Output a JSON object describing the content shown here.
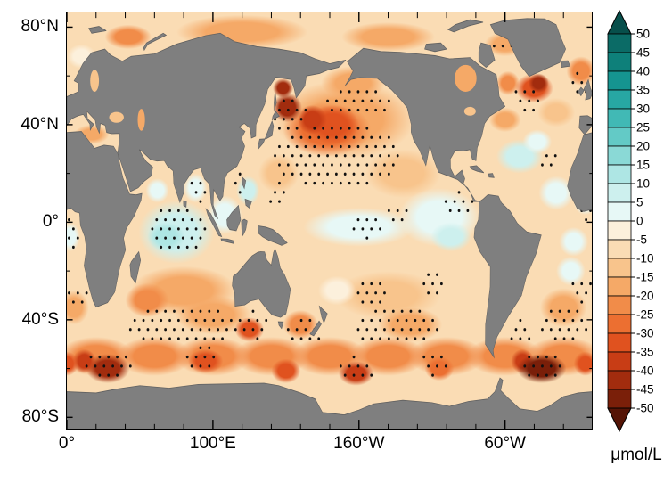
{
  "chart_data": {
    "type": "heatmap",
    "x_axis": {
      "range": [
        0,
        360
      ],
      "minor_tick_interval_deg": 20,
      "ticks": [
        {
          "lon": 0,
          "label": "0°"
        },
        {
          "lon": 100,
          "label": "100°E"
        },
        {
          "lon": 200,
          "label": "160°W"
        },
        {
          "lon": 300,
          "label": "60°W"
        }
      ]
    },
    "y_axis": {
      "range": [
        86,
        -85
      ],
      "minor_tick_interval_deg": 20,
      "ticks": [
        {
          "lat": 80,
          "label": "80°N"
        },
        {
          "lat": 40,
          "label": "40°N"
        },
        {
          "lat": 0,
          "label": "0°"
        },
        {
          "lat": -40,
          "label": "40°S"
        },
        {
          "lat": -80,
          "label": "80°S"
        }
      ]
    },
    "colorbar": {
      "unit_label": "μmol/L",
      "ticks": [
        50,
        45,
        40,
        35,
        30,
        25,
        20,
        15,
        10,
        5,
        0,
        -5,
        -10,
        -15,
        -20,
        -25,
        -30,
        -35,
        -40,
        -45,
        -50
      ],
      "segment_colors_top_to_bottom": [
        "#0b6b66",
        "#0e807a",
        "#159490",
        "#27a7a3",
        "#41b9b5",
        "#63cac6",
        "#8ad9d6",
        "#aee6e4",
        "#cdf0ee",
        "#e7f8f6",
        "#fcf0dc",
        "#fadcb4",
        "#f8c48c",
        "#f5a967",
        "#f18c49",
        "#ec6f31",
        "#e0521f",
        "#c83d15",
        "#a22c0e",
        "#7a1f09"
      ],
      "arrow_top_color": "#074f4b",
      "arrow_bottom_color": "#551406"
    },
    "land_color": "#7f7f7f",
    "land_edge_color": "#606060",
    "ocean_background_value": -7,
    "region_value_format": "[lon_deg_east, lat_deg, half_width_deg, half_height_deg, value_umol_per_L]",
    "anomaly_regions": [
      [
        190,
        42,
        48,
        16,
        -18
      ],
      [
        196,
        57,
        22,
        7,
        -15
      ],
      [
        230,
        20,
        26,
        10,
        -12
      ],
      [
        145,
        20,
        14,
        8,
        -12
      ],
      [
        120,
        78,
        45,
        7,
        -18
      ],
      [
        220,
        76,
        32,
        6,
        -15
      ],
      [
        42,
        76,
        16,
        5,
        -20
      ],
      [
        300,
        73,
        14,
        5,
        -18
      ],
      [
        80,
        -28,
        36,
        10,
        -15
      ],
      [
        100,
        -38,
        26,
        8,
        -18
      ],
      [
        220,
        -30,
        36,
        10,
        -13
      ],
      [
        235,
        -42,
        22,
        7,
        -18
      ],
      [
        340,
        -35,
        16,
        8,
        -16
      ],
      [
        5,
        -35,
        10,
        7,
        -16
      ],
      [
        20,
        -55,
        26,
        8,
        -22
      ],
      [
        60,
        -55,
        26,
        8,
        -22
      ],
      [
        100,
        -55,
        26,
        8,
        -22
      ],
      [
        140,
        -55,
        26,
        8,
        -22
      ],
      [
        180,
        -55,
        26,
        8,
        -22
      ],
      [
        220,
        -55,
        26,
        8,
        -22
      ],
      [
        260,
        -55,
        26,
        8,
        -22
      ],
      [
        300,
        -55,
        26,
        8,
        -22
      ],
      [
        340,
        -55,
        26,
        8,
        -22
      ],
      [
        17,
        36,
        12,
        4,
        -15
      ],
      [
        300,
        42,
        11,
        5,
        -15
      ],
      [
        335,
        45,
        13,
        6,
        -10
      ],
      [
        352,
        62,
        10,
        6,
        -20
      ],
      [
        302,
        57,
        8,
        5,
        -22
      ],
      [
        200,
        -2,
        38,
        8,
        1
      ],
      [
        185,
        -28,
        13,
        6,
        -2
      ],
      [
        10,
        68,
        10,
        5,
        0
      ],
      [
        255,
        2,
        28,
        12,
        4
      ],
      [
        263,
        -6,
        14,
        6,
        7
      ],
      [
        75,
        -4,
        26,
        13,
        7
      ],
      [
        68,
        -6,
        13,
        6,
        12
      ],
      [
        88,
        14,
        8,
        6,
        5
      ],
      [
        62,
        13,
        8,
        5,
        5
      ],
      [
        108,
        3,
        12,
        8,
        5
      ],
      [
        124,
        13,
        8,
        6,
        6
      ],
      [
        310,
        27,
        16,
        7,
        8
      ],
      [
        322,
        33,
        10,
        5,
        5
      ],
      [
        335,
        12,
        12,
        7,
        4
      ],
      [
        347,
        -8,
        10,
        6,
        4
      ],
      [
        345,
        -20,
        10,
        6,
        3
      ],
      [
        355,
        8,
        8,
        5,
        4
      ],
      [
        2,
        -6,
        7,
        6,
        3
      ],
      [
        178,
        38,
        30,
        11,
        -25
      ],
      [
        182,
        40,
        18,
        8,
        -32
      ],
      [
        168,
        42,
        10,
        6,
        -38
      ],
      [
        151,
        47,
        10,
        6,
        -44
      ],
      [
        148,
        55,
        7,
        4,
        -40
      ],
      [
        320,
        55,
        13,
        6,
        -30
      ],
      [
        323,
        57,
        7,
        4,
        -42
      ],
      [
        55,
        -32,
        15,
        7,
        -22
      ],
      [
        125,
        -44,
        10,
        5,
        -30
      ],
      [
        160,
        -42,
        12,
        6,
        -20
      ],
      [
        28,
        -60,
        15,
        6,
        -42
      ],
      [
        12,
        -57,
        8,
        5,
        -35
      ],
      [
        95,
        -57,
        12,
        5,
        -32
      ],
      [
        150,
        -61,
        10,
        5,
        -30
      ],
      [
        198,
        -62,
        12,
        5,
        -35
      ],
      [
        255,
        -60,
        10,
        5,
        -28
      ],
      [
        312,
        -57,
        8,
        5,
        -35
      ],
      [
        325,
        -60,
        17,
        6,
        -47
      ],
      [
        355,
        -58,
        8,
        5,
        -30
      ],
      [
        0,
        -58,
        8,
        5,
        -30
      ]
    ],
    "inland_seas": [
      [
        273,
        59,
        7.5,
        5.5,
        -15
      ],
      [
        51,
        42,
        2.5,
        4.5,
        -18
      ],
      [
        34,
        43,
        5,
        2.2,
        -10
      ],
      [
        19,
        58,
        3,
        4.5,
        -12
      ],
      [
        276,
        45.5,
        4,
        1.8,
        -12
      ]
    ],
    "stipple_region_format": "[lon_deg_east, lat_deg, half_width_deg, half_height_deg]",
    "stipple_regions": [
      [
        185,
        27,
        45,
        13
      ],
      [
        152,
        43,
        13,
        8
      ],
      [
        200,
        49,
        25,
        6
      ],
      [
        75,
        -3,
        20,
        10
      ],
      [
        90,
        13,
        7,
        5
      ],
      [
        80,
        -42,
        40,
        8
      ],
      [
        128,
        -42,
        12,
        6
      ],
      [
        163,
        -45,
        12,
        6
      ],
      [
        225,
        -43,
        30,
        8
      ],
      [
        208,
        -30,
        12,
        6
      ],
      [
        250,
        -25,
        10,
        5
      ],
      [
        205,
        -2,
        12,
        5
      ],
      [
        228,
        4,
        9,
        4
      ],
      [
        268,
        8,
        10,
        5
      ],
      [
        340,
        -42,
        18,
        7
      ],
      [
        352,
        -28,
        8,
        5
      ],
      [
        316,
        50,
        11,
        6
      ],
      [
        350,
        57,
        8,
        5
      ],
      [
        330,
        25,
        8,
        4
      ],
      [
        27,
        -58,
        17,
        6
      ],
      [
        93,
        -56,
        13,
        5
      ],
      [
        198,
        -60,
        13,
        5
      ],
      [
        253,
        -58,
        11,
        5
      ],
      [
        324,
        -59,
        16,
        6
      ],
      [
        3,
        -5,
        5,
        7
      ],
      [
        355,
        5,
        7,
        6
      ],
      [
        7,
        -30,
        7,
        5
      ],
      [
        300,
        73,
        8,
        3
      ],
      [
        117,
        16,
        6,
        5
      ],
      [
        145,
        12,
        8,
        5
      ],
      [
        310,
        -45,
        8,
        5
      ]
    ]
  }
}
